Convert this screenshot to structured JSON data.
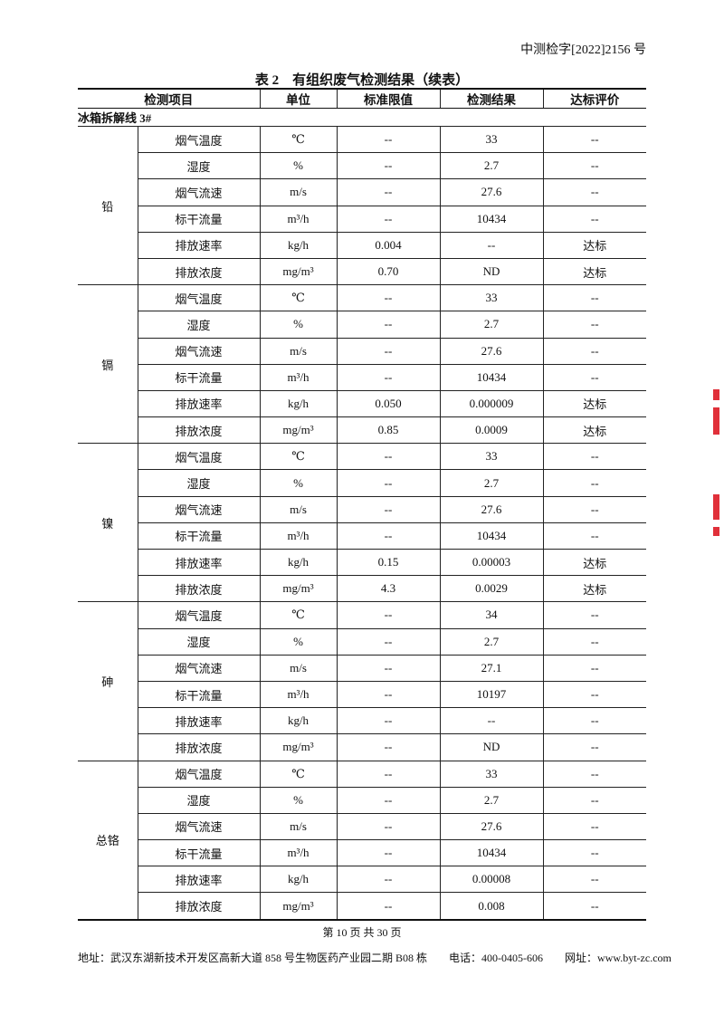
{
  "header": {
    "doc_number": "中测检字[2022]2156 号"
  },
  "table": {
    "title": "表 2　有组织废气检测结果（续表）",
    "columns": [
      "检测项目",
      "单位",
      "标准限值",
      "检测结果",
      "达标评价"
    ],
    "section": "冰箱拆解线 3#",
    "groups": [
      {
        "name": "铅",
        "rows": [
          [
            "烟气温度",
            "℃",
            "--",
            "33",
            "--"
          ],
          [
            "湿度",
            "%",
            "--",
            "2.7",
            "--"
          ],
          [
            "烟气流速",
            "m/s",
            "--",
            "27.6",
            "--"
          ],
          [
            "标干流量",
            "m³/h",
            "--",
            "10434",
            "--"
          ],
          [
            "排放速率",
            "kg/h",
            "0.004",
            "--",
            "达标"
          ],
          [
            "排放浓度",
            "mg/m³",
            "0.70",
            "ND",
            "达标"
          ]
        ]
      },
      {
        "name": "镉",
        "rows": [
          [
            "烟气温度",
            "℃",
            "--",
            "33",
            "--"
          ],
          [
            "湿度",
            "%",
            "--",
            "2.7",
            "--"
          ],
          [
            "烟气流速",
            "m/s",
            "--",
            "27.6",
            "--"
          ],
          [
            "标干流量",
            "m³/h",
            "--",
            "10434",
            "--"
          ],
          [
            "排放速率",
            "kg/h",
            "0.050",
            "0.000009",
            "达标"
          ],
          [
            "排放浓度",
            "mg/m³",
            "0.85",
            "0.0009",
            "达标"
          ]
        ]
      },
      {
        "name": "镍",
        "rows": [
          [
            "烟气温度",
            "℃",
            "--",
            "33",
            "--"
          ],
          [
            "湿度",
            "%",
            "--",
            "2.7",
            "--"
          ],
          [
            "烟气流速",
            "m/s",
            "--",
            "27.6",
            "--"
          ],
          [
            "标干流量",
            "m³/h",
            "--",
            "10434",
            "--"
          ],
          [
            "排放速率",
            "kg/h",
            "0.15",
            "0.00003",
            "达标"
          ],
          [
            "排放浓度",
            "mg/m³",
            "4.3",
            "0.0029",
            "达标"
          ]
        ]
      },
      {
        "name": "砷",
        "rows": [
          [
            "烟气温度",
            "℃",
            "--",
            "34",
            "--"
          ],
          [
            "湿度",
            "%",
            "--",
            "2.7",
            "--"
          ],
          [
            "烟气流速",
            "m/s",
            "--",
            "27.1",
            "--"
          ],
          [
            "标干流量",
            "m³/h",
            "--",
            "10197",
            "--"
          ],
          [
            "排放速率",
            "kg/h",
            "--",
            "--",
            "--"
          ],
          [
            "排放浓度",
            "mg/m³",
            "--",
            "ND",
            "--"
          ]
        ]
      },
      {
        "name": "总铬",
        "rows": [
          [
            "烟气温度",
            "℃",
            "--",
            "33",
            "--"
          ],
          [
            "湿度",
            "%",
            "--",
            "2.7",
            "--"
          ],
          [
            "烟气流速",
            "m/s",
            "--",
            "27.6",
            "--"
          ],
          [
            "标干流量",
            "m³/h",
            "--",
            "10434",
            "--"
          ],
          [
            "排放速率",
            "kg/h",
            "--",
            "0.00008",
            "--"
          ],
          [
            "排放浓度",
            "mg/m³",
            "--",
            "0.008",
            "--"
          ]
        ]
      }
    ]
  },
  "footer": {
    "page": "第 10 页 共 30 页",
    "address": "地址：武汉东湖新技术开发区高新大道 858 号生物医药产业园二期 B08 栋　　电话：400-0405-606　　网址：www.byt-zc.com"
  },
  "seal_color": "#e0303a"
}
